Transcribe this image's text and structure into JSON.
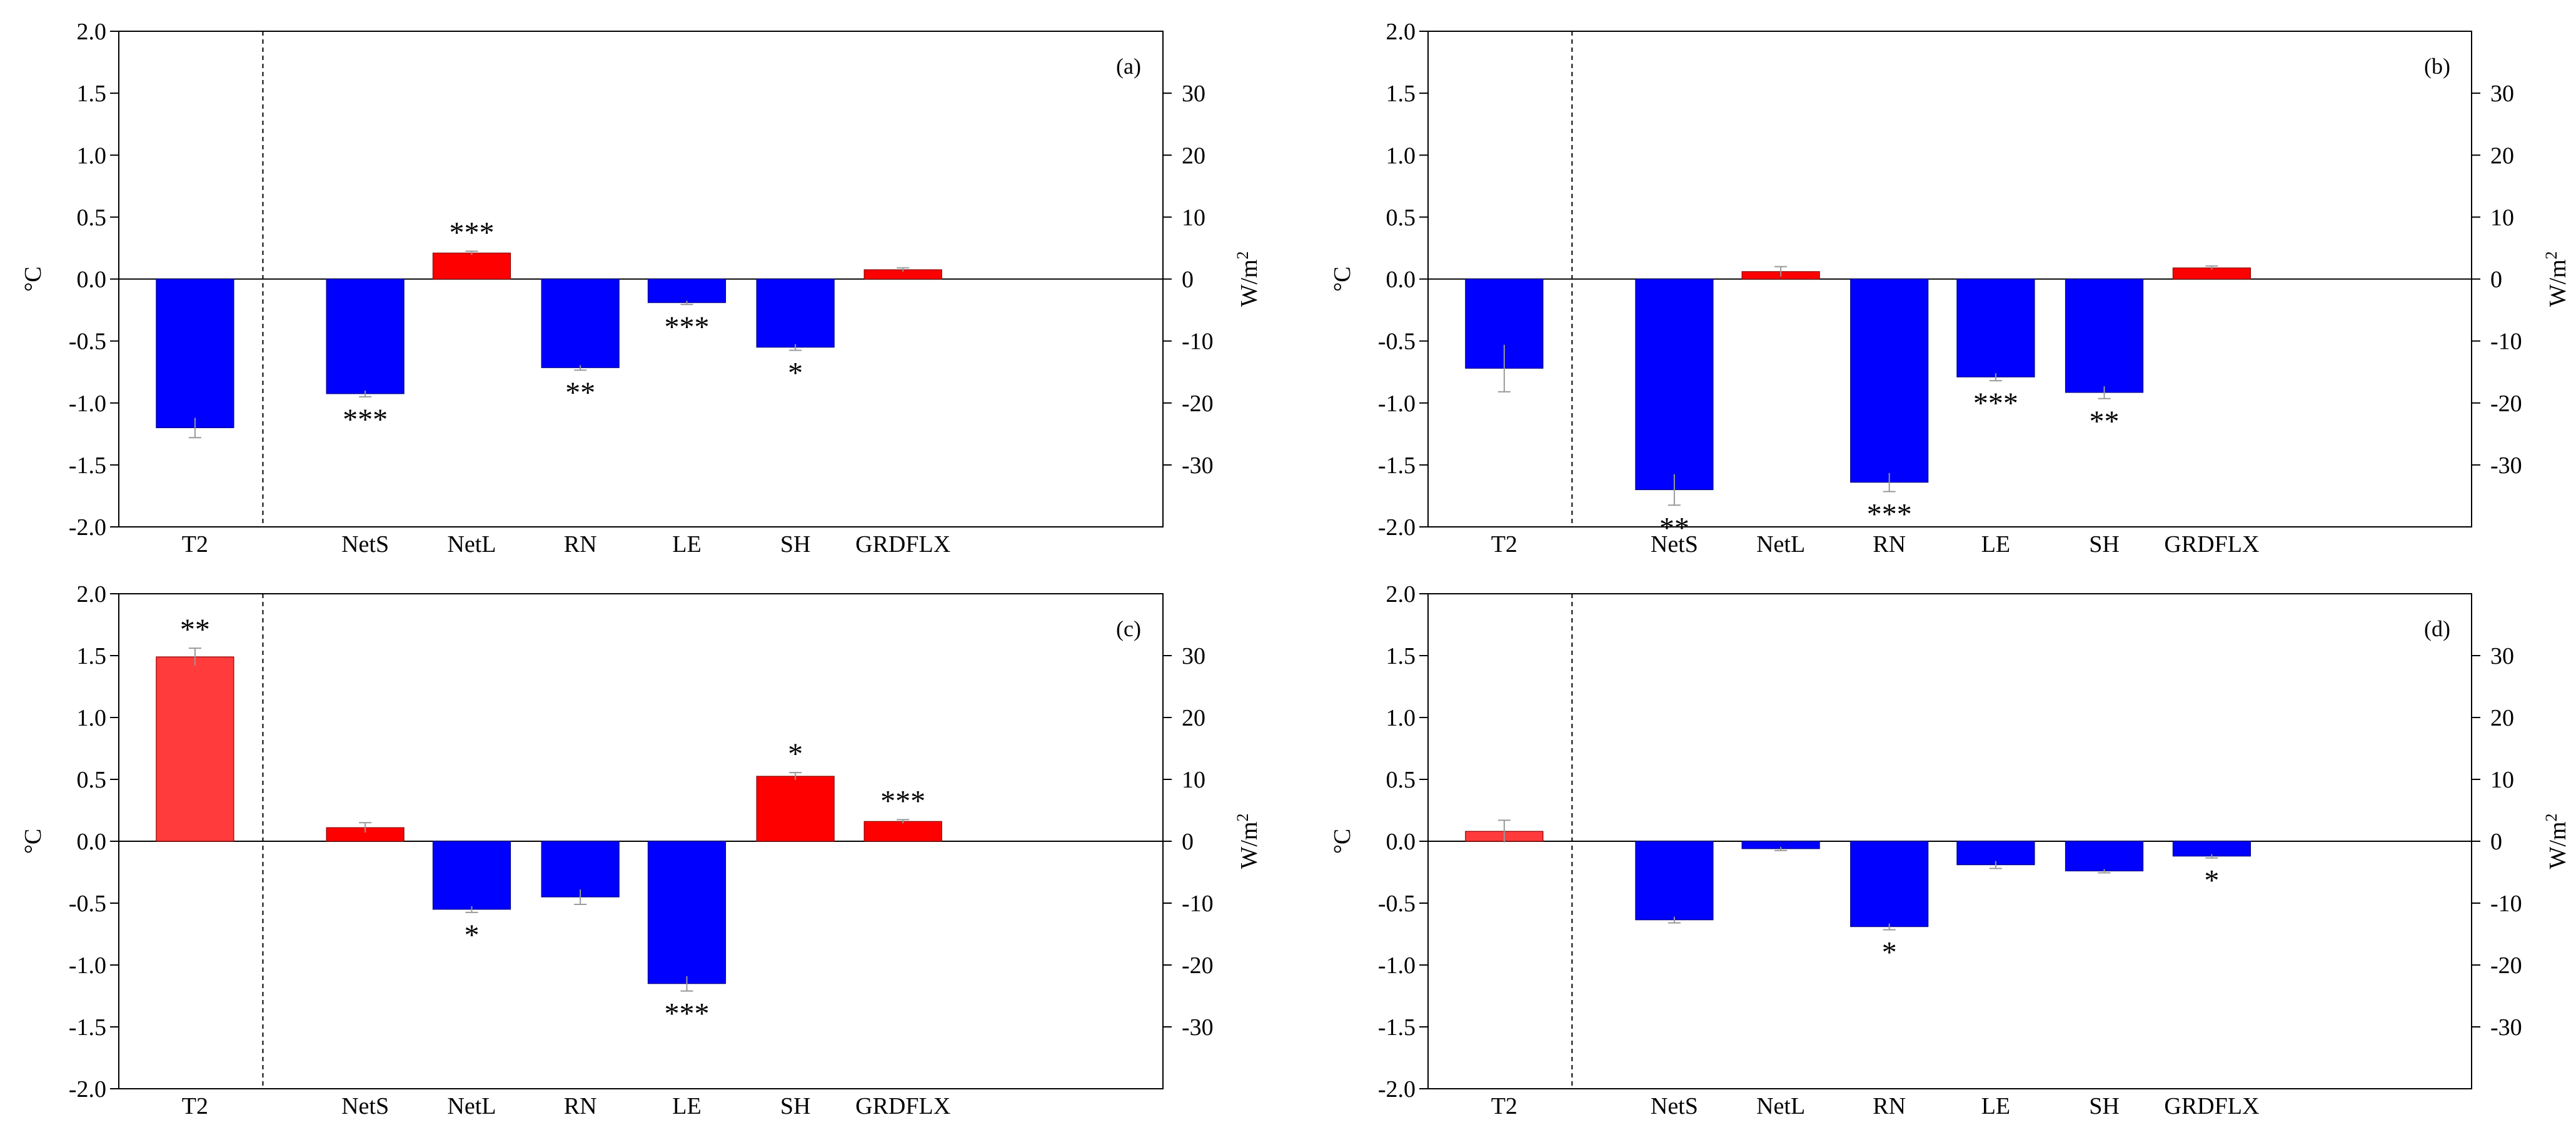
{
  "figure": {
    "left_axis_label": "°C",
    "right_axis_label": "W/m",
    "right_axis_label_superscript": "2",
    "left_ticks": [
      "2.0",
      "1.5",
      "1.0",
      "0.5",
      "0.0",
      "-0.5",
      "-1.0",
      "-1.5",
      "-2.0"
    ],
    "right_ticks": [
      "30",
      "20",
      "10",
      "0",
      "-10",
      "-20",
      "-30"
    ],
    "colors": {
      "red": "#ff0000",
      "t2_red": "#ff3b3b",
      "blue": "#0000ff",
      "error": "#999999"
    }
  },
  "chart_data": [
    {
      "type": "bar",
      "panel_label": "(a)",
      "left_axis": {
        "label": "°C",
        "ylim": [
          -2.0,
          2.0
        ]
      },
      "right_axis": {
        "label": "W/m2",
        "ylim": [
          -40,
          40
        ]
      },
      "categories": [
        "T2",
        "NetS",
        "NetL",
        "RN",
        "LE",
        "SH",
        "GRDFLX"
      ],
      "values": [
        -1.2,
        -18.5,
        4.2,
        -14.3,
        -3.8,
        -11.0,
        1.5
      ],
      "errors": [
        0.08,
        0.5,
        0.3,
        0.4,
        0.3,
        0.5,
        0.3
      ],
      "significance": [
        "",
        "***",
        "***",
        "**",
        "***",
        "*",
        ""
      ]
    },
    {
      "type": "bar",
      "panel_label": "(b)",
      "left_axis": {
        "label": "°C",
        "ylim": [
          -2.0,
          2.0
        ]
      },
      "right_axis": {
        "label": "W/m2",
        "ylim": [
          -40,
          40
        ]
      },
      "categories": [
        "T2",
        "NetS",
        "NetL",
        "RN",
        "LE",
        "SH",
        "GRDFLX"
      ],
      "values": [
        -0.72,
        -34.0,
        1.2,
        -32.8,
        -15.8,
        -18.3,
        1.8
      ],
      "errors": [
        0.19,
        2.5,
        0.8,
        1.5,
        0.6,
        1.0,
        0.3
      ],
      "significance": [
        "",
        "**",
        "",
        "***",
        "***",
        "**",
        ""
      ]
    },
    {
      "type": "bar",
      "panel_label": "(c)",
      "left_axis": {
        "label": "°C",
        "ylim": [
          -2.0,
          2.0
        ]
      },
      "right_axis": {
        "label": "W/m2",
        "ylim": [
          -40,
          40
        ]
      },
      "categories": [
        "T2",
        "NetS",
        "NetL",
        "RN",
        "LE",
        "SH",
        "GRDFLX"
      ],
      "values": [
        1.49,
        2.2,
        -11.0,
        -9.0,
        -23.0,
        10.5,
        3.2
      ],
      "errors": [
        0.07,
        0.8,
        0.5,
        1.2,
        1.2,
        0.6,
        0.3
      ],
      "significance": [
        "**",
        "",
        "*",
        "",
        "***",
        "*",
        "***"
      ]
    },
    {
      "type": "bar",
      "panel_label": "(d)",
      "left_axis": {
        "label": "°C",
        "ylim": [
          -2.0,
          2.0
        ]
      },
      "right_axis": {
        "label": "W/m2",
        "ylim": [
          -40,
          40
        ]
      },
      "categories": [
        "T2",
        "NetS",
        "NetL",
        "RN",
        "LE",
        "SH",
        "GRDFLX"
      ],
      "values": [
        0.08,
        -12.7,
        -1.2,
        -13.8,
        -3.8,
        -4.8,
        -2.4
      ],
      "errors": [
        0.09,
        0.5,
        0.3,
        0.5,
        0.6,
        0.3,
        0.3
      ],
      "significance": [
        "",
        "",
        "",
        "*",
        "",
        "",
        "*"
      ]
    }
  ]
}
